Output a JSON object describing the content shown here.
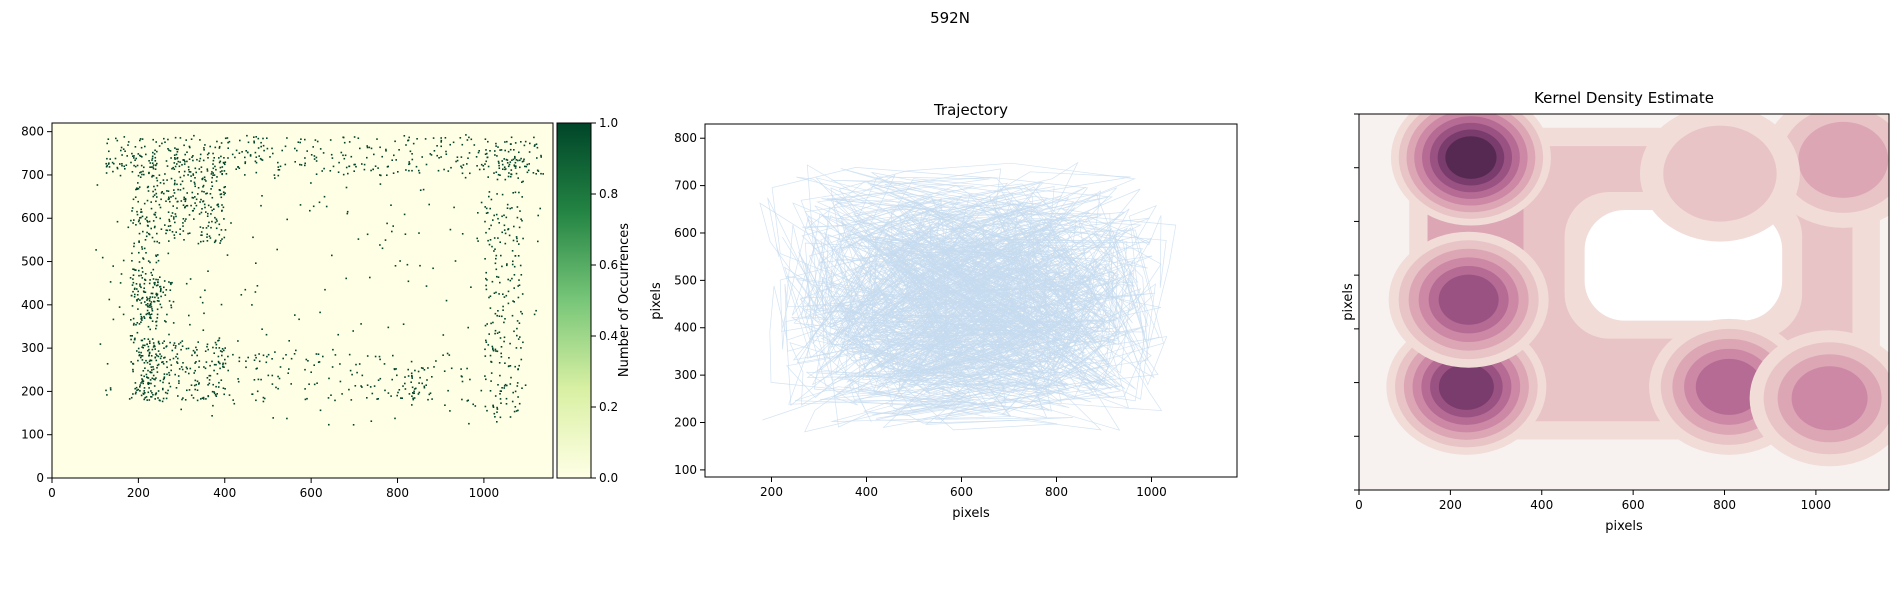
{
  "figure": {
    "suptitle": "592N"
  },
  "colors": {
    "occupancy_low": "#ffffe5",
    "occupancy_high": "#004529",
    "trajectory": "#c6dbef",
    "kde_ramp": [
      "#f7f2f0",
      "#f1dcd8",
      "#e8c4c6",
      "#dca6b5",
      "#cc88a5",
      "#b56b93",
      "#9a5283",
      "#7a3c6c",
      "#552952"
    ]
  },
  "chart_data": [
    {
      "type": "heatmap",
      "title": "",
      "xlabel": "",
      "ylabel": "",
      "xlim": [
        0,
        1160
      ],
      "ylim": [
        0,
        820
      ],
      "xticks": [
        0,
        200,
        400,
        600,
        800,
        1000
      ],
      "yticks": [
        0,
        100,
        200,
        300,
        400,
        500,
        600,
        700,
        800
      ],
      "colorbar": {
        "label": "Number of Occurrences",
        "range": [
          0,
          1
        ],
        "ticks": [
          "0.0",
          "0.2",
          "0.4",
          "0.6",
          "0.8",
          "1.0"
        ]
      },
      "note_cells": "binary occupancy cells, value 1 where the animal was observed",
      "occupied_regions": [
        {
          "x": [
            180,
            250
          ],
          "y": [
            180,
            760
          ],
          "density": "high"
        },
        {
          "x": [
            250,
            400
          ],
          "y": [
            540,
            750
          ],
          "density": "high"
        },
        {
          "x": [
            200,
            400
          ],
          "y": [
            180,
            320
          ],
          "density": "high"
        },
        {
          "x": [
            200,
            280
          ],
          "y": [
            360,
            460
          ],
          "density": "high"
        },
        {
          "x": [
            1000,
            1090
          ],
          "y": [
            140,
            760
          ],
          "density": "medium"
        },
        {
          "x": [
            780,
            870
          ],
          "y": [
            180,
            260
          ],
          "density": "medium"
        },
        {
          "x": [
            120,
            1140
          ],
          "y": [
            700,
            790
          ],
          "density": "medium"
        },
        {
          "x": [
            400,
            1000
          ],
          "y": [
            180,
            290
          ],
          "density": "low"
        },
        {
          "x": [
            100,
            1140
          ],
          "y": [
            120,
            800
          ],
          "density": "sparse"
        }
      ]
    },
    {
      "type": "line",
      "title": "Trajectory",
      "xlabel": "pixels",
      "ylabel": "pixels",
      "xlim": [
        60,
        1180
      ],
      "ylim": [
        85,
        830
      ],
      "xticks": [
        200,
        400,
        600,
        800,
        1000
      ],
      "yticks": [
        100,
        200,
        300,
        400,
        500,
        600,
        700,
        800
      ],
      "arena_corners": {
        "x": [
          200,
          1050
        ],
        "y": [
          200,
          740
        ]
      },
      "path_extent": {
        "x": [
          120,
          1120
        ],
        "y": [
          130,
          790
        ]
      }
    },
    {
      "type": "heatmap",
      "title": "Kernel Density Estimate",
      "xlabel": "pixels",
      "ylabel": "pixels",
      "xlim": [
        0,
        1160
      ],
      "ylim": [
        0,
        820
      ],
      "xticks": [
        0,
        200,
        400,
        600,
        800,
        1000
      ],
      "ytick_count": 8,
      "ytick_labels_shown": false,
      "hotspots": [
        {
          "x": 245,
          "y": 725,
          "level": 9
        },
        {
          "x": 235,
          "y": 225,
          "level": 8
        },
        {
          "x": 240,
          "y": 415,
          "level": 7
        },
        {
          "x": 810,
          "y": 225,
          "level": 6
        },
        {
          "x": 1030,
          "y": 200,
          "level": 5
        },
        {
          "x": 1060,
          "y": 720,
          "level": 4
        },
        {
          "x": 790,
          "y": 690,
          "level": 3
        }
      ]
    }
  ]
}
